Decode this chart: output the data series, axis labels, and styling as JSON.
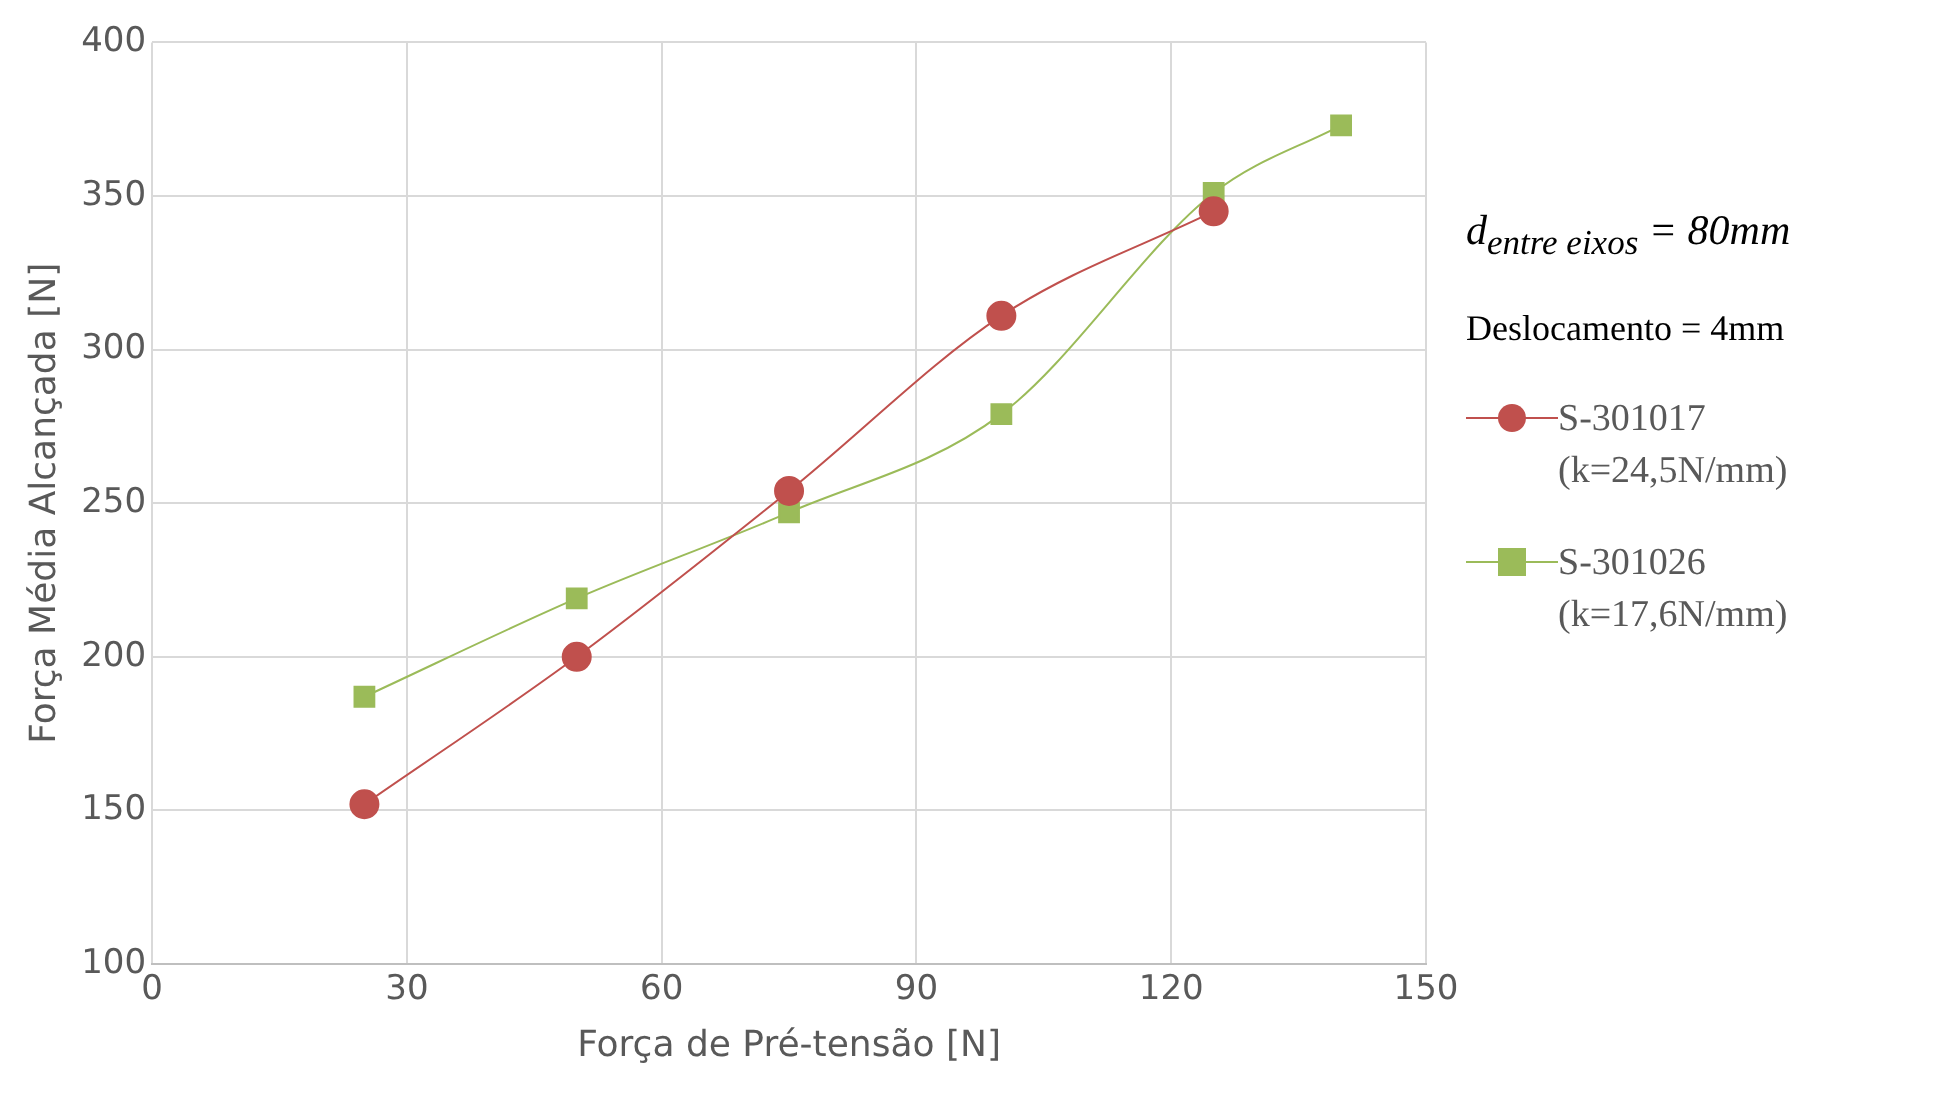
{
  "chart_data": {
    "type": "line",
    "xlabel": "Força de Pré-tensão [N]",
    "ylabel": "Força Média Alcançada [N]",
    "xlim": [
      0,
      150
    ],
    "xticks": [
      0,
      30,
      60,
      90,
      120,
      150
    ],
    "ylim": [
      100,
      400
    ],
    "yticks": [
      100,
      150,
      200,
      250,
      300,
      350,
      400
    ],
    "grid": true,
    "legend": "right",
    "annotations": [
      "d$_{entre eixos}$ = 80mm",
      "Deslocamento = 4mm"
    ],
    "series": [
      {
        "name": "S-301017 (k=24,5N/mm)",
        "color": "#c0504d",
        "marker": "circle",
        "x": [
          25,
          50,
          75,
          100,
          125
        ],
        "values": [
          152,
          200,
          254,
          311,
          345
        ]
      },
      {
        "name": "S-301026 (k=17,6N/mm)",
        "color": "#9bbb59",
        "marker": "square",
        "x": [
          25,
          50,
          75,
          100,
          125,
          140
        ],
        "values": [
          187,
          219,
          247,
          279,
          351,
          373
        ]
      }
    ]
  }
}
